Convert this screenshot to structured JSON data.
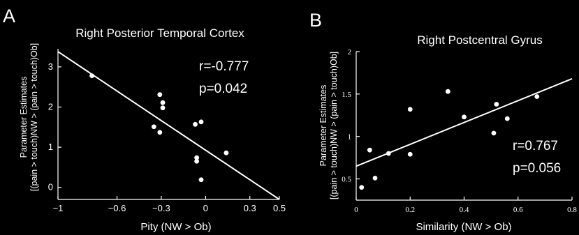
{
  "chart_data": [
    {
      "panel": "A",
      "type": "scatter",
      "title": "Right Posterior Temporal Cortex",
      "xlabel": "Pity (NW > Ob)",
      "ylabel_lines": [
        "Parameter Estimates",
        "[(pain > touch)NW > (pain > touch)Ob]"
      ],
      "xlim": [
        -1,
        0.5
      ],
      "ylim": [
        -0.3,
        3.45
      ],
      "xticks": [
        -1,
        -0.6,
        -0.3,
        0,
        0.3,
        0.5
      ],
      "xtick_labels": [
        "−1",
        "−0.6",
        "−0.3",
        "0",
        "0.3",
        "0.5"
      ],
      "yticks": [
        0,
        1,
        2,
        3
      ],
      "ytick_labels": [
        "0",
        "1",
        "2",
        "3"
      ],
      "stats": {
        "r": "r=-0.777",
        "p": "p=0.042"
      },
      "fit_line": {
        "x": [
          -1,
          0.5
        ],
        "y": [
          3.38,
          -0.3
        ]
      },
      "points": [
        {
          "x": -0.77,
          "y": 2.78
        },
        {
          "x": -0.31,
          "y": 2.31
        },
        {
          "x": -0.29,
          "y": 2.11
        },
        {
          "x": -0.29,
          "y": 1.98
        },
        {
          "x": -0.35,
          "y": 1.51
        },
        {
          "x": -0.31,
          "y": 1.37
        },
        {
          "x": -0.07,
          "y": 1.57
        },
        {
          "x": -0.03,
          "y": 1.63
        },
        {
          "x": 0.14,
          "y": 0.86
        },
        {
          "x": -0.06,
          "y": 0.74
        },
        {
          "x": -0.06,
          "y": 0.65
        },
        {
          "x": -0.03,
          "y": 0.19
        }
      ]
    },
    {
      "panel": "B",
      "type": "scatter",
      "title": "Right Postcentral Gyrus",
      "xlabel": "Similarity (NW > Ob)",
      "ylabel_lines": [
        "Parameter Estimates",
        "[(pain > touch)NW > (pain > touch)Ob]"
      ],
      "xlim": [
        0,
        0.8
      ],
      "ylim": [
        0.25,
        2
      ],
      "xticks": [
        0,
        0.2,
        0.4,
        0.6,
        0.8
      ],
      "xtick_labels": [
        "0",
        "0.2",
        "0.4",
        "0.6",
        "0.8"
      ],
      "yticks": [
        0.5,
        1,
        1.5,
        2
      ],
      "ytick_labels": [
        "0.5",
        "1",
        "1.5",
        "2"
      ],
      "stats": {
        "r": "r=0.767",
        "p": "p=0.056"
      },
      "fit_line": {
        "x": [
          0,
          0.8
        ],
        "y": [
          0.65,
          1.68
        ]
      },
      "points": [
        {
          "x": 0.02,
          "y": 0.4
        },
        {
          "x": 0.05,
          "y": 0.84
        },
        {
          "x": 0.07,
          "y": 0.51
        },
        {
          "x": 0.12,
          "y": 0.8
        },
        {
          "x": 0.2,
          "y": 1.32
        },
        {
          "x": 0.2,
          "y": 0.79
        },
        {
          "x": 0.34,
          "y": 1.53
        },
        {
          "x": 0.4,
          "y": 1.23
        },
        {
          "x": 0.51,
          "y": 1.04
        },
        {
          "x": 0.52,
          "y": 1.38
        },
        {
          "x": 0.56,
          "y": 1.21
        },
        {
          "x": 0.67,
          "y": 1.47
        }
      ]
    }
  ]
}
